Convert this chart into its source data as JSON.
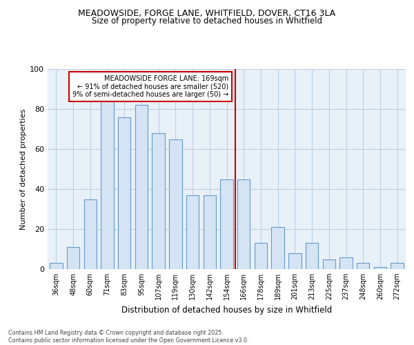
{
  "title1": "MEADOWSIDE, FORGE LANE, WHITFIELD, DOVER, CT16 3LA",
  "title2": "Size of property relative to detached houses in Whitfield",
  "xlabel": "Distribution of detached houses by size in Whitfield",
  "ylabel": "Number of detached properties",
  "bar_color": "#d4e4f4",
  "bar_edge_color": "#6699cc",
  "fig_bg_color": "#ffffff",
  "plot_bg_color": "#e8f0f8",
  "grid_color": "#c0cfe0",
  "categories": [
    "36sqm",
    "48sqm",
    "60sqm",
    "71sqm",
    "83sqm",
    "95sqm",
    "107sqm",
    "119sqm",
    "130sqm",
    "142sqm",
    "154sqm",
    "166sqm",
    "178sqm",
    "189sqm",
    "201sqm",
    "213sqm",
    "225sqm",
    "237sqm",
    "248sqm",
    "260sqm",
    "272sqm"
  ],
  "values": [
    3,
    11,
    35,
    84,
    76,
    82,
    68,
    65,
    37,
    37,
    45,
    45,
    13,
    21,
    8,
    13,
    5,
    6,
    3,
    1,
    3
  ],
  "vline_color": "#cc0000",
  "vline_x_index": 11,
  "annotation_title": "MEADOWSIDE FORGE LANE: 169sqm",
  "annotation_line1": "← 91% of detached houses are smaller (520)",
  "annotation_line2": "9% of semi-detached houses are larger (50) →",
  "annotation_box_color": "#ffffff",
  "annotation_border_color": "#cc0000",
  "ylim": [
    0,
    100
  ],
  "yticks": [
    0,
    20,
    40,
    60,
    80,
    100
  ],
  "bar_width": 0.75,
  "footer": "Contains HM Land Registry data © Crown copyright and database right 2025.\nContains public sector information licensed under the Open Government Licence v3.0."
}
